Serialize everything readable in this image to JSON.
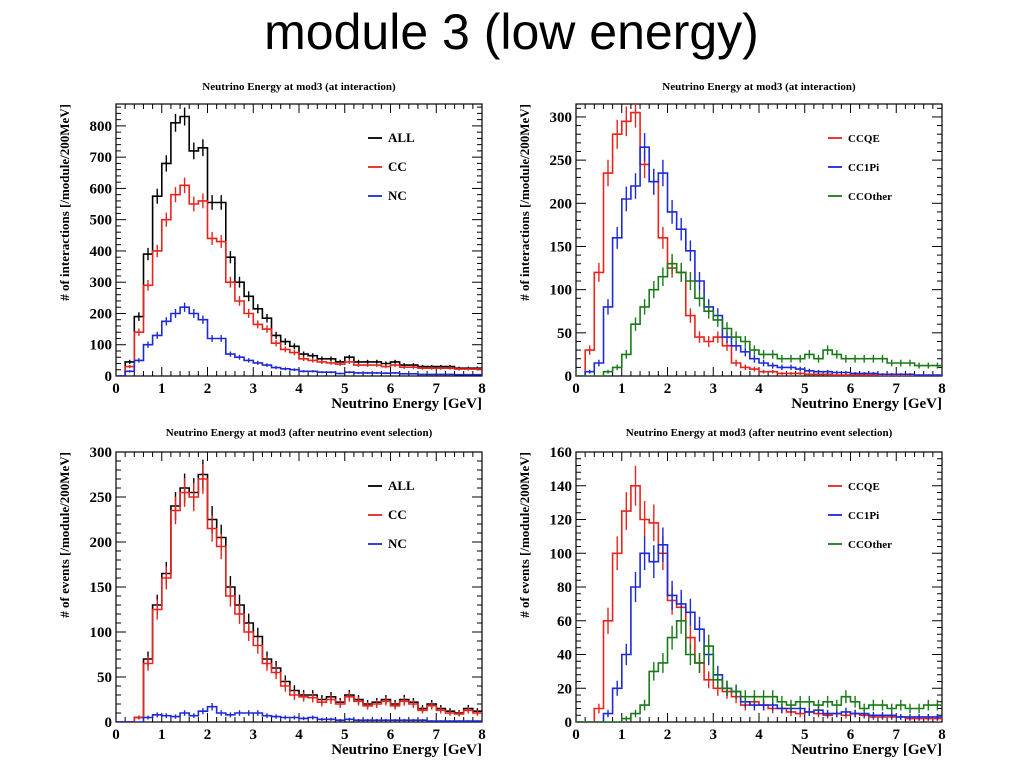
{
  "slide": {
    "title": "module 3 (low energy)"
  },
  "chart_data": [
    {
      "type": "line",
      "title": "Neutrino Energy at mod3 (at interaction)",
      "xlabel": "Neutrino Energy [GeV]",
      "ylabel": "# of interactions [/module/200MeV]",
      "xlim": [
        0,
        8
      ],
      "ylim": [
        0,
        870
      ],
      "xticks": [
        0,
        1,
        2,
        3,
        4,
        5,
        6,
        7,
        8
      ],
      "yticks": [
        0,
        100,
        200,
        300,
        400,
        500,
        600,
        700,
        800
      ],
      "legend_position": "top-right",
      "bin_width": 0.2,
      "x": [
        0.1,
        0.3,
        0.5,
        0.7,
        0.9,
        1.1,
        1.3,
        1.5,
        1.7,
        1.9,
        2.1,
        2.3,
        2.5,
        2.7,
        2.9,
        3.1,
        3.3,
        3.5,
        3.7,
        3.9,
        4.1,
        4.3,
        4.5,
        4.7,
        4.9,
        5.1,
        5.3,
        5.5,
        5.7,
        5.9,
        6.1,
        6.3,
        6.5,
        6.7,
        6.9,
        7.1,
        7.3,
        7.5,
        7.7,
        7.9
      ],
      "series": [
        {
          "name": "ALL",
          "color": "#000000",
          "values": [
            0,
            45,
            190,
            390,
            575,
            680,
            810,
            830,
            720,
            730,
            555,
            555,
            380,
            300,
            255,
            215,
            185,
            130,
            110,
            95,
            70,
            65,
            55,
            55,
            45,
            60,
            45,
            45,
            45,
            40,
            45,
            35,
            35,
            30,
            30,
            30,
            30,
            25,
            25,
            25
          ]
        },
        {
          "name": "CC",
          "color": "#e8241c",
          "values": [
            0,
            30,
            140,
            290,
            400,
            500,
            580,
            610,
            550,
            560,
            440,
            430,
            300,
            240,
            200,
            165,
            150,
            105,
            85,
            75,
            55,
            50,
            45,
            42,
            38,
            45,
            35,
            35,
            35,
            30,
            35,
            28,
            28,
            25,
            25,
            25,
            25,
            22,
            22,
            22
          ]
        },
        {
          "name": "NC",
          "color": "#1c2ad8",
          "values": [
            0,
            15,
            50,
            100,
            130,
            175,
            200,
            220,
            200,
            180,
            120,
            120,
            70,
            60,
            50,
            42,
            35,
            27,
            23,
            20,
            15,
            15,
            12,
            12,
            8,
            12,
            10,
            10,
            10,
            9,
            10,
            7,
            7,
            5,
            5,
            5,
            5,
            4,
            4,
            4
          ]
        }
      ]
    },
    {
      "type": "line",
      "title": "Neutrino Energy at mod3 (at interaction)",
      "xlabel": "Neutrino Energy [GeV]",
      "ylabel": "# of interactions [/module/200MeV]",
      "xlim": [
        0,
        8
      ],
      "ylim": [
        0,
        315
      ],
      "xticks": [
        0,
        1,
        2,
        3,
        4,
        5,
        6,
        7,
        8
      ],
      "yticks": [
        0,
        50,
        100,
        150,
        200,
        250,
        300
      ],
      "legend_position": "top-right",
      "bin_width": 0.2,
      "x": [
        0.1,
        0.3,
        0.5,
        0.7,
        0.9,
        1.1,
        1.3,
        1.5,
        1.7,
        1.9,
        2.1,
        2.3,
        2.5,
        2.7,
        2.9,
        3.1,
        3.3,
        3.5,
        3.7,
        3.9,
        4.1,
        4.3,
        4.5,
        4.7,
        4.9,
        5.1,
        5.3,
        5.5,
        5.7,
        5.9,
        6.1,
        6.3,
        6.5,
        6.7,
        6.9,
        7.1,
        7.3,
        7.5,
        7.7,
        7.9
      ],
      "series": [
        {
          "name": "CCQE",
          "color": "#e8241c",
          "values": [
            0,
            30,
            120,
            235,
            280,
            295,
            305,
            245,
            225,
            160,
            125,
            120,
            70,
            45,
            40,
            45,
            35,
            15,
            10,
            8,
            5,
            5,
            3,
            3,
            3,
            2,
            2,
            2,
            1,
            1,
            1,
            1,
            1,
            0,
            0,
            0,
            0,
            0,
            0,
            0
          ]
        },
        {
          "name": "CC1Pi",
          "color": "#1c2ad8",
          "values": [
            0,
            5,
            15,
            80,
            160,
            205,
            220,
            265,
            225,
            235,
            190,
            170,
            145,
            110,
            80,
            70,
            45,
            35,
            28,
            20,
            15,
            12,
            10,
            10,
            8,
            6,
            5,
            5,
            4,
            4,
            3,
            3,
            3,
            2,
            2,
            2,
            2,
            1,
            1,
            1
          ]
        },
        {
          "name": "CCOther",
          "color": "#1a7a1a",
          "values": [
            0,
            0,
            0,
            5,
            10,
            25,
            60,
            80,
            100,
            115,
            130,
            120,
            110,
            90,
            75,
            65,
            55,
            45,
            40,
            30,
            25,
            25,
            20,
            20,
            20,
            25,
            20,
            30,
            25,
            20,
            20,
            20,
            20,
            20,
            15,
            15,
            15,
            12,
            12,
            12
          ]
        }
      ]
    },
    {
      "type": "line",
      "title": "Neutrino Energy at mod3 (after neutrino event selection)",
      "xlabel": "Neutrino Energy [GeV]",
      "ylabel": "# of events [/module/200MeV]",
      "xlim": [
        0,
        8
      ],
      "ylim": [
        0,
        300
      ],
      "xticks": [
        0,
        1,
        2,
        3,
        4,
        5,
        6,
        7,
        8
      ],
      "yticks": [
        0,
        50,
        100,
        150,
        200,
        250,
        300
      ],
      "legend_position": "top-right",
      "bin_width": 0.2,
      "x": [
        0.1,
        0.3,
        0.5,
        0.7,
        0.9,
        1.1,
        1.3,
        1.5,
        1.7,
        1.9,
        2.1,
        2.3,
        2.5,
        2.7,
        2.9,
        3.1,
        3.3,
        3.5,
        3.7,
        3.9,
        4.1,
        4.3,
        4.5,
        4.7,
        4.9,
        5.1,
        5.3,
        5.5,
        5.7,
        5.9,
        6.1,
        6.3,
        6.5,
        6.7,
        6.9,
        7.1,
        7.3,
        7.5,
        7.7,
        7.9
      ],
      "series": [
        {
          "name": "ALL",
          "color": "#000000",
          "values": [
            0,
            0,
            5,
            70,
            130,
            165,
            240,
            260,
            255,
            275,
            225,
            205,
            150,
            130,
            110,
            95,
            70,
            60,
            45,
            35,
            30,
            30,
            25,
            28,
            22,
            30,
            25,
            20,
            22,
            25,
            20,
            25,
            22,
            15,
            20,
            15,
            12,
            10,
            15,
            12
          ]
        },
        {
          "name": "CC",
          "color": "#e8241c",
          "values": [
            0,
            0,
            5,
            65,
            125,
            160,
            235,
            255,
            250,
            270,
            215,
            195,
            140,
            120,
            100,
            85,
            65,
            55,
            40,
            30,
            28,
            27,
            22,
            25,
            20,
            28,
            23,
            18,
            20,
            23,
            18,
            23,
            20,
            13,
            18,
            13,
            10,
            9,
            13,
            10
          ]
        },
        {
          "name": "NC",
          "color": "#1c2ad8",
          "values": [
            0,
            0,
            0,
            5,
            8,
            7,
            6,
            10,
            7,
            12,
            17,
            10,
            8,
            10,
            10,
            10,
            7,
            6,
            5,
            5,
            4,
            5,
            3,
            3,
            2,
            3,
            2,
            2,
            2,
            2,
            2,
            2,
            2,
            2,
            1,
            1,
            1,
            1,
            1,
            1
          ]
        }
      ]
    },
    {
      "type": "line",
      "title": "Neutrino Energy at mod3 (after neutrino event selection)",
      "xlabel": "Neutrino Energy [GeV]",
      "ylabel": "# of events [/module/200MeV]",
      "xlim": [
        0,
        8
      ],
      "ylim": [
        0,
        160
      ],
      "xticks": [
        0,
        1,
        2,
        3,
        4,
        5,
        6,
        7,
        8
      ],
      "yticks": [
        0,
        20,
        40,
        60,
        80,
        100,
        120,
        140,
        160
      ],
      "legend_position": "top-right",
      "bin_width": 0.2,
      "x": [
        0.1,
        0.3,
        0.5,
        0.7,
        0.9,
        1.1,
        1.3,
        1.5,
        1.7,
        1.9,
        2.1,
        2.3,
        2.5,
        2.7,
        2.9,
        3.1,
        3.3,
        3.5,
        3.7,
        3.9,
        4.1,
        4.3,
        4.5,
        4.7,
        4.9,
        5.1,
        5.3,
        5.5,
        5.7,
        5.9,
        6.1,
        6.3,
        6.5,
        6.7,
        6.9,
        7.1,
        7.3,
        7.5,
        7.7,
        7.9
      ],
      "series": [
        {
          "name": "CCQE",
          "color": "#e8241c",
          "values": [
            0,
            0,
            8,
            60,
            100,
            125,
            140,
            120,
            118,
            100,
            72,
            68,
            50,
            35,
            25,
            20,
            18,
            15,
            10,
            12,
            10,
            8,
            8,
            6,
            5,
            6,
            5,
            4,
            5,
            4,
            5,
            4,
            3,
            3,
            3,
            3,
            2,
            2,
            2,
            2
          ]
        },
        {
          "name": "CC1Pi",
          "color": "#1c2ad8",
          "values": [
            0,
            0,
            0,
            5,
            20,
            40,
            80,
            100,
            95,
            105,
            75,
            70,
            65,
            55,
            40,
            28,
            20,
            18,
            12,
            10,
            10,
            10,
            8,
            8,
            8,
            6,
            7,
            5,
            5,
            6,
            5,
            5,
            4,
            4,
            4,
            3,
            3,
            3,
            3,
            3
          ]
        },
        {
          "name": "CCOther",
          "color": "#1a7a1a",
          "values": [
            0,
            0,
            0,
            0,
            0,
            2,
            5,
            10,
            30,
            35,
            50,
            60,
            40,
            35,
            45,
            25,
            20,
            18,
            15,
            15,
            15,
            15,
            12,
            10,
            12,
            12,
            10,
            12,
            10,
            15,
            12,
            8,
            10,
            10,
            8,
            10,
            8,
            8,
            10,
            10
          ]
        }
      ]
    }
  ]
}
